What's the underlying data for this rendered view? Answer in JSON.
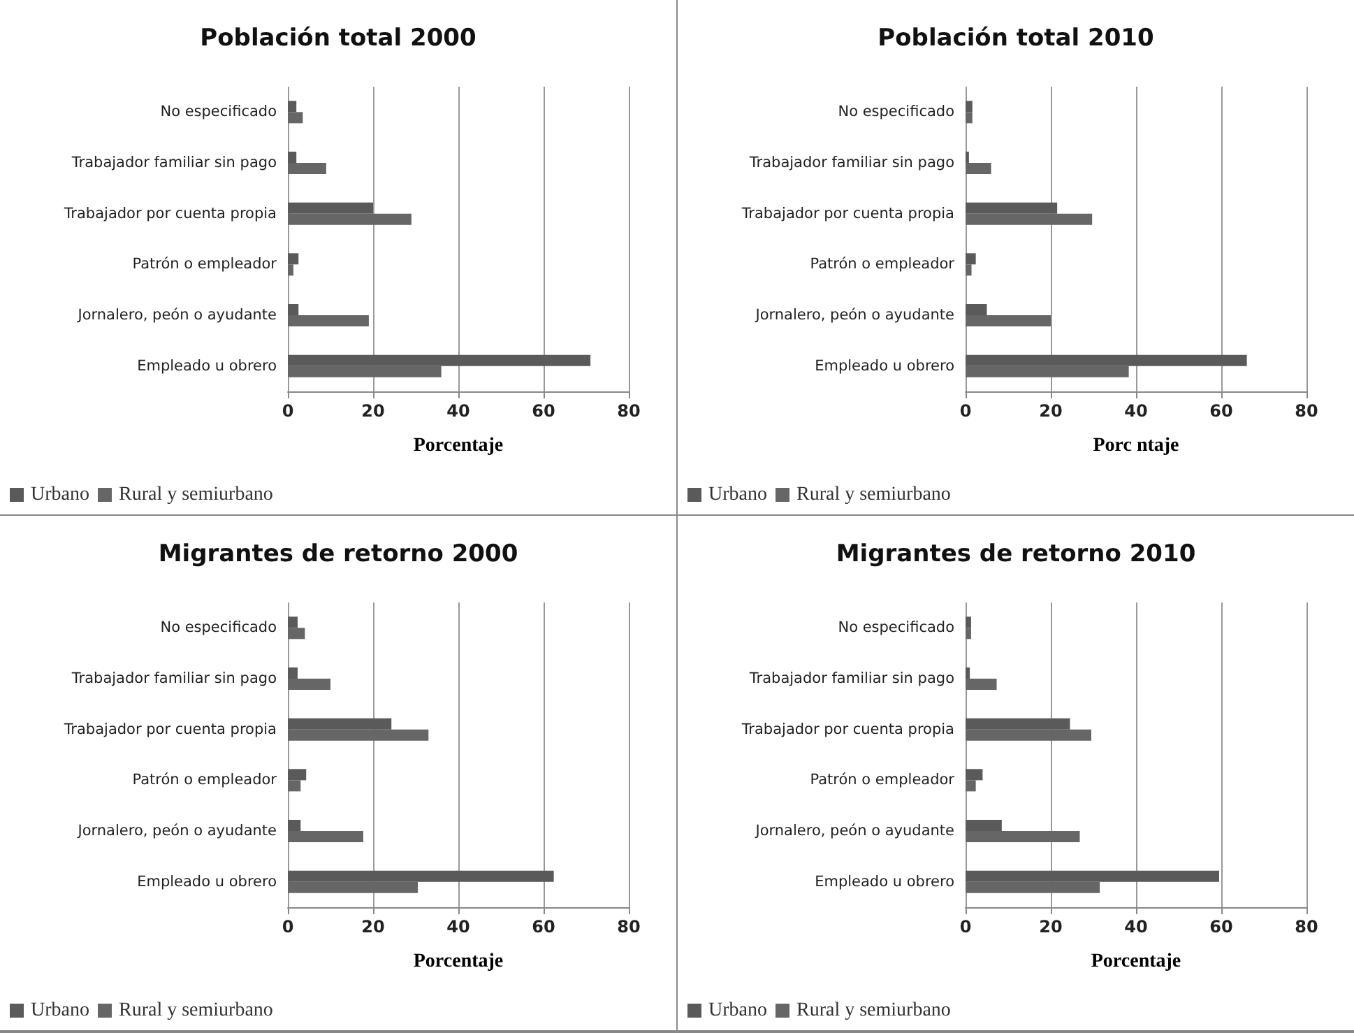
{
  "chart_data": [
    {
      "type": "bar",
      "orientation": "horizontal",
      "title": "Población total 2000",
      "xlabel": "Porcentaje",
      "categories": [
        "No especificado",
        "Trabajador familiar sin pago",
        "Trabajador por cuenta propia",
        "Patrón o empleador",
        "Jornalero, peón o ayudante",
        "Empleado u obrero"
      ],
      "series": [
        {
          "name": "Urbano",
          "color": "#5a5a5a",
          "values": [
            2,
            2,
            20,
            2.5,
            2.5,
            71
          ]
        },
        {
          "name": "Rural y semiurbano",
          "color": "#666666",
          "values": [
            3.5,
            9,
            29,
            1.3,
            19,
            36
          ]
        }
      ],
      "xlim": [
        0,
        80
      ],
      "xticks": [
        0,
        20,
        40,
        60,
        80
      ],
      "grid": "x",
      "legend": "bottom left"
    },
    {
      "type": "bar",
      "orientation": "horizontal",
      "title": "Población total 2010",
      "xlabel": "Porc ntaje",
      "categories": [
        "No especificado",
        "Trabajador familiar sin pago",
        "Trabajador por cuenta propia",
        "Patrón o empleador",
        "Jornalero, peón o ayudante",
        "Empleado u obrero"
      ],
      "series": [
        {
          "name": "Urbano",
          "color": "#5a5a5a",
          "values": [
            1.6,
            0.8,
            21.5,
            2.4,
            5,
            66
          ]
        },
        {
          "name": "Rural y semiurbano",
          "color": "#666666",
          "values": [
            1.6,
            6,
            29.7,
            1.4,
            20,
            38.3
          ]
        }
      ],
      "xlim": [
        0,
        80
      ],
      "xticks": [
        0,
        20,
        40,
        60,
        80
      ],
      "grid": "x",
      "legend": "bottom left"
    },
    {
      "type": "bar",
      "orientation": "horizontal",
      "title": "Migrantes de retorno 2000",
      "xlabel": "Porcentaje",
      "categories": [
        "No especificado",
        "Trabajador familiar sin pago",
        "Trabajador por cuenta propia",
        "Patrón o empleador",
        "Jornalero, peón o ayudante",
        "Empleado u obrero"
      ],
      "series": [
        {
          "name": "Urbano",
          "color": "#5a5a5a",
          "values": [
            2.3,
            2.3,
            24.3,
            4.3,
            3,
            62.4
          ]
        },
        {
          "name": "Rural y semiurbano",
          "color": "#666666",
          "values": [
            4,
            10,
            33,
            3,
            17.7,
            30.5
          ]
        }
      ],
      "xlim": [
        0,
        80
      ],
      "xticks": [
        0,
        20,
        40,
        60,
        80
      ],
      "grid": "x",
      "legend": "bottom left"
    },
    {
      "type": "bar",
      "orientation": "horizontal",
      "title": "Migrantes de retorno 2010",
      "xlabel": "Porcentaje",
      "categories": [
        "No especificado",
        "Trabajador familiar sin pago",
        "Trabajador por cuenta propia",
        "Patrón o empleador",
        "Jornalero, peón o ayudante",
        "Empleado u obrero"
      ],
      "series": [
        {
          "name": "Urbano",
          "color": "#5a5a5a",
          "values": [
            1.3,
            1,
            24.5,
            4,
            8.5,
            59.5
          ]
        },
        {
          "name": "Rural y semiurbano",
          "color": "#666666",
          "values": [
            1.3,
            7.3,
            29.5,
            2.4,
            26.8,
            31.5
          ]
        }
      ],
      "xlim": [
        0,
        80
      ],
      "xticks": [
        0,
        20,
        40,
        60,
        80
      ],
      "grid": "x",
      "legend": "bottom left"
    }
  ]
}
